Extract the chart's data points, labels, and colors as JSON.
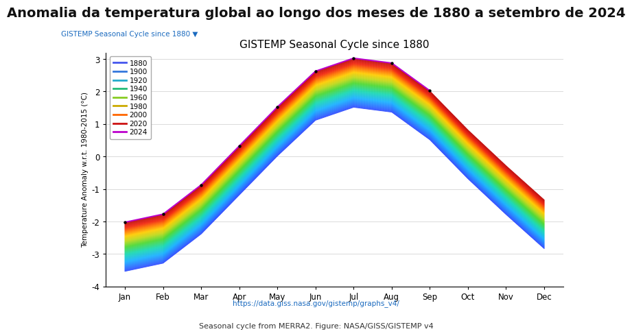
{
  "title_main": "Anomalia da temperatura global ao longo dos meses de 1880 a setembro de 2024",
  "subtitle_blue": "GISTEMP Seasonal Cycle since 1880 ▼",
  "chart_title": "GISTEMP Seasonal Cycle since 1880",
  "ylabel": "Temperature Anomaly w.r.t. 1980-2015 (°C)",
  "url_text": "https://data.giss.nasa.gov/gistemp/graphs_v4/",
  "footer_text": "Seasonal cycle from MERRA2. Figure: NASA/GISS/GISTEMP v4",
  "ylim": [
    -4,
    3.2
  ],
  "yticks": [
    -4,
    -3,
    -2,
    -1,
    0,
    1,
    2,
    3
  ],
  "months": [
    "Jan",
    "Feb",
    "Mar",
    "Apr",
    "May",
    "Jun",
    "Jul",
    "Aug",
    "Sep",
    "Oct",
    "Nov",
    "Dec"
  ],
  "year_start": 1880,
  "year_end": 2024,
  "legend_years": [
    1880,
    1900,
    1920,
    1940,
    1960,
    1980,
    2000,
    2020,
    2024
  ],
  "background_color": "#ffffff",
  "title_main_fontsize": 14,
  "chart_title_fontsize": 11,
  "subtitle_color": "#1a6abf",
  "url_color": "#1a6abf",
  "footer_color": "#333333",
  "base_seasonal": [
    -2.8,
    -2.55,
    -1.65,
    -0.45,
    0.75,
    1.85,
    2.25,
    2.1,
    1.25,
    0.05,
    -1.05,
    -2.1
  ],
  "warming_per_year": 0.0105,
  "ref_year": 1950,
  "amplitude_scale_per_year": 0.0
}
